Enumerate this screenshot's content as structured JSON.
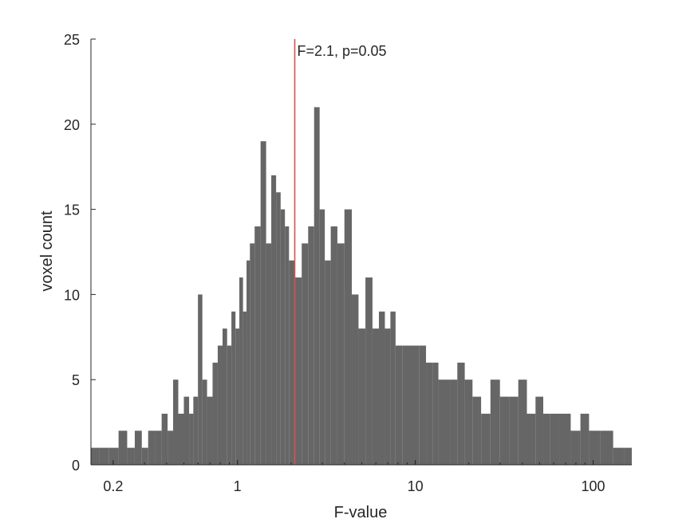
{
  "chart_data": {
    "type": "bar",
    "xlabel": "F-value",
    "ylabel": "voxel count",
    "x_scale": "log",
    "xlim": [
      0.15,
      165
    ],
    "ylim": [
      0,
      25
    ],
    "x_ticks": [
      0.2,
      1,
      10,
      100
    ],
    "x_tick_labels": [
      "0.2",
      "1",
      "10",
      "100"
    ],
    "y_ticks": [
      0,
      5,
      10,
      15,
      20,
      25
    ],
    "y_tick_labels": [
      "0",
      "5",
      "10",
      "15",
      "20",
      "25"
    ],
    "grid": false,
    "bar_color": "#666666",
    "threshold": {
      "value": 2.1,
      "label": "F=2.1, p=0.05",
      "color": "#d95050"
    },
    "bins": [
      [
        0.155,
        1
      ],
      [
        0.18,
        1
      ],
      [
        0.2,
        1
      ],
      [
        0.23,
        2
      ],
      [
        0.25,
        1
      ],
      [
        0.28,
        2
      ],
      [
        0.3,
        1
      ],
      [
        0.33,
        2
      ],
      [
        0.36,
        2
      ],
      [
        0.39,
        3
      ],
      [
        0.42,
        2
      ],
      [
        0.45,
        5
      ],
      [
        0.48,
        3
      ],
      [
        0.52,
        4
      ],
      [
        0.55,
        3
      ],
      [
        0.58,
        4
      ],
      [
        0.62,
        10
      ],
      [
        0.65,
        5
      ],
      [
        0.7,
        4
      ],
      [
        0.75,
        6
      ],
      [
        0.8,
        7
      ],
      [
        0.85,
        8
      ],
      [
        0.9,
        7
      ],
      [
        0.95,
        9
      ],
      [
        1.0,
        8
      ],
      [
        1.05,
        11
      ],
      [
        1.1,
        9
      ],
      [
        1.15,
        12
      ],
      [
        1.2,
        13
      ],
      [
        1.3,
        14
      ],
      [
        1.4,
        19
      ],
      [
        1.5,
        13
      ],
      [
        1.6,
        17
      ],
      [
        1.7,
        16
      ],
      [
        1.8,
        15
      ],
      [
        1.9,
        14
      ],
      [
        2.0,
        12
      ],
      [
        2.2,
        11
      ],
      [
        2.4,
        13
      ],
      [
        2.6,
        14
      ],
      [
        2.8,
        21
      ],
      [
        3.0,
        15
      ],
      [
        3.2,
        12
      ],
      [
        3.5,
        14
      ],
      [
        3.8,
        13
      ],
      [
        4.2,
        15
      ],
      [
        4.6,
        10
      ],
      [
        5.0,
        8
      ],
      [
        5.5,
        11
      ],
      [
        6.0,
        8
      ],
      [
        6.5,
        9
      ],
      [
        7.0,
        8
      ],
      [
        7.5,
        9
      ],
      [
        8.0,
        7
      ],
      [
        9.0,
        7
      ],
      [
        10.0,
        7
      ],
      [
        11.0,
        7
      ],
      [
        12.0,
        6
      ],
      [
        13.0,
        6
      ],
      [
        14.0,
        5
      ],
      [
        15.0,
        5
      ],
      [
        16.5,
        5
      ],
      [
        18.0,
        6
      ],
      [
        20.0,
        5
      ],
      [
        22.0,
        4
      ],
      [
        25.0,
        3
      ],
      [
        28.0,
        5
      ],
      [
        32.0,
        4
      ],
      [
        36.0,
        4
      ],
      [
        40.0,
        5
      ],
      [
        45.0,
        3
      ],
      [
        50.0,
        4
      ],
      [
        55.0,
        3
      ],
      [
        60.0,
        3
      ],
      [
        70.0,
        3
      ],
      [
        80.0,
        2
      ],
      [
        90.0,
        3
      ],
      [
        100.0,
        2
      ],
      [
        120.0,
        2
      ],
      [
        140.0,
        1
      ],
      [
        160.0,
        1
      ]
    ]
  }
}
